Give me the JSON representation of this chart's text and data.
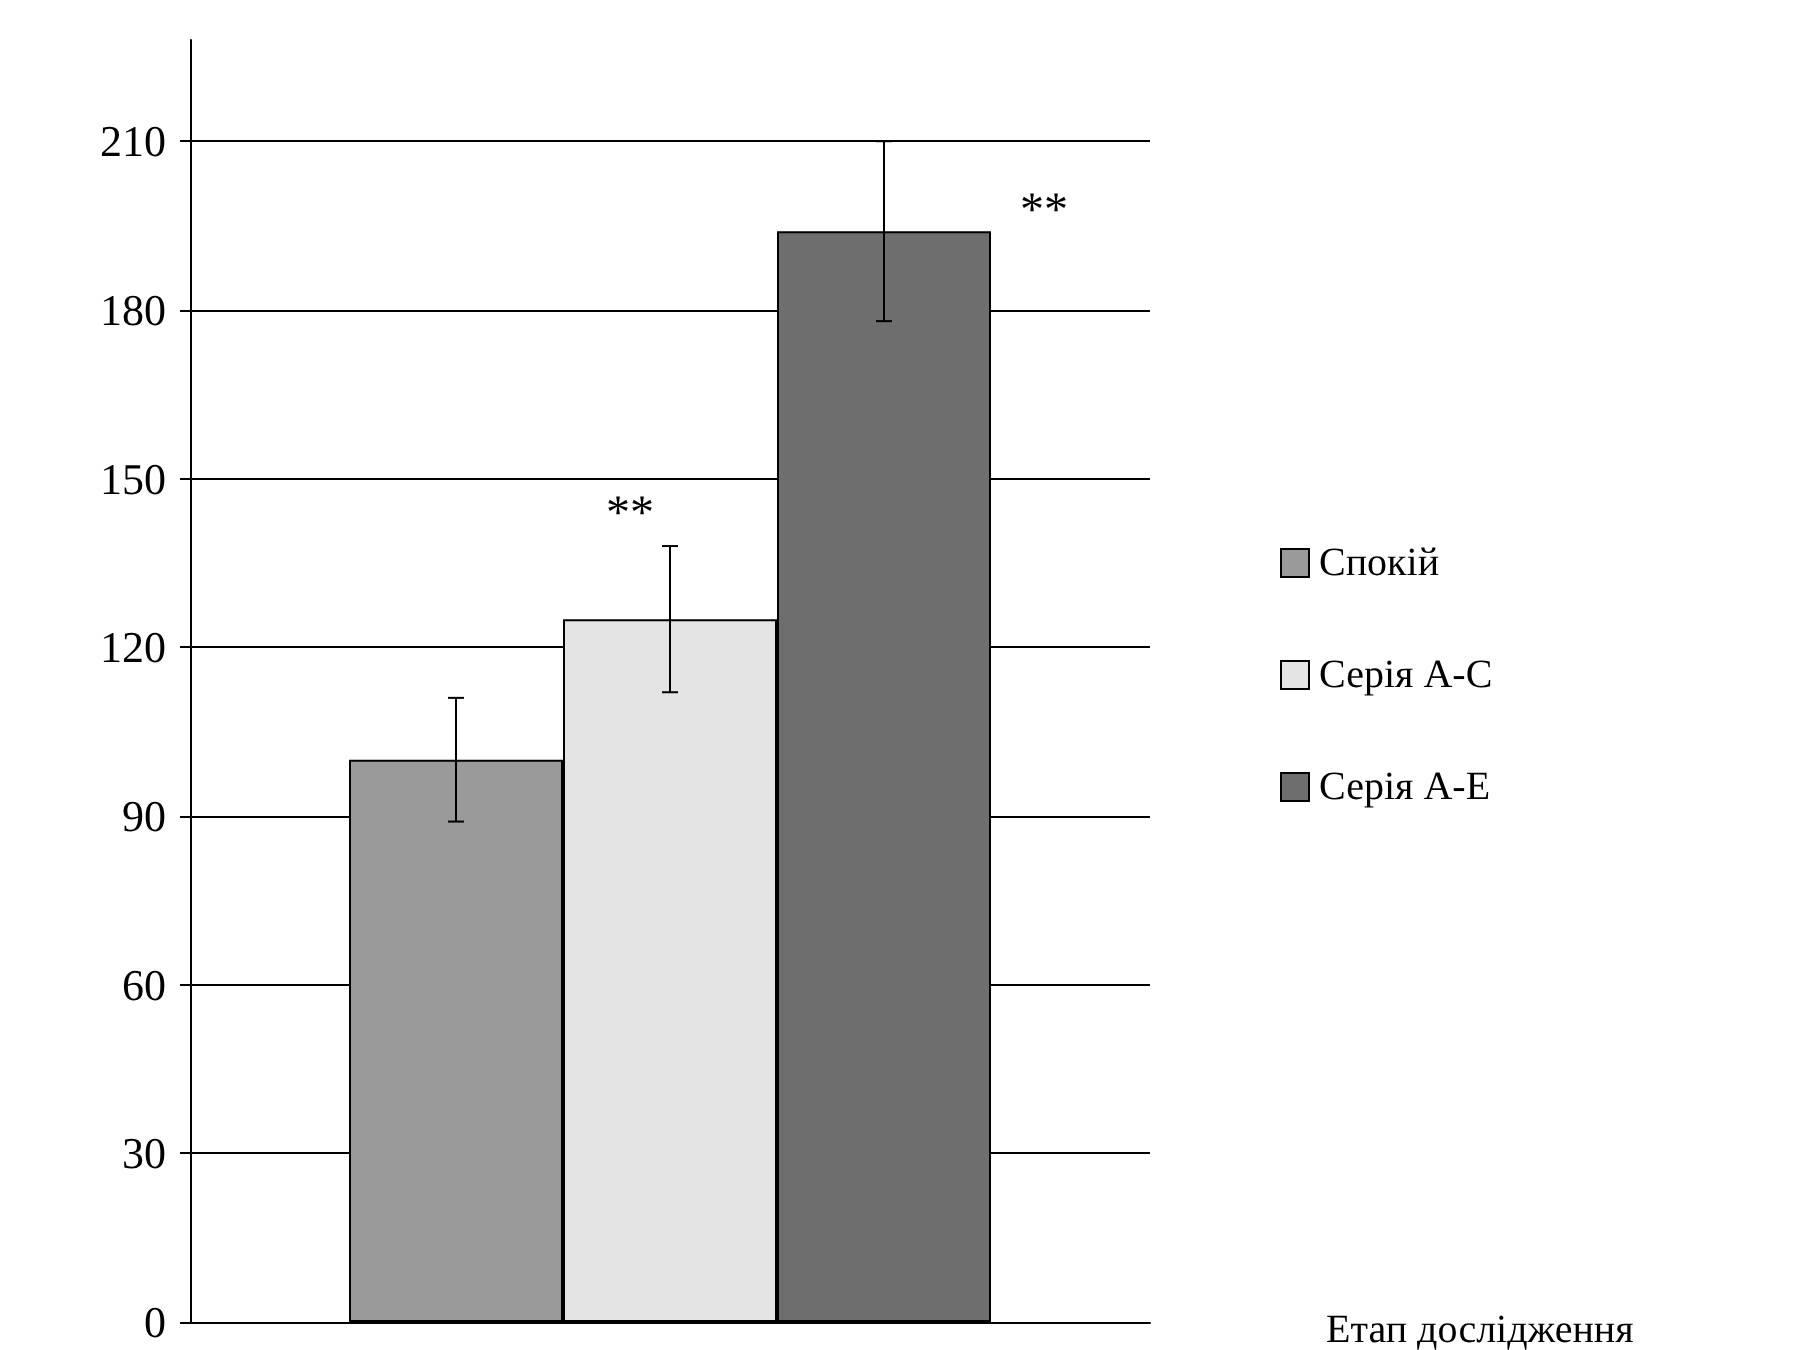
{
  "chart_data": {
    "type": "bar",
    "xlabel": "Етап дослідження",
    "categories": [
      null
    ],
    "series": [
      {
        "name": "Спокій",
        "color": "#9a9a9a",
        "values": [
          100
        ],
        "errors": [
          11
        ]
      },
      {
        "name": "Серія А-С",
        "color": "#e4e4e4",
        "values": [
          125
        ],
        "errors": [
          13
        ]
      },
      {
        "name": "Серія А-Е",
        "color": "#6e6e6e",
        "values": [
          194
        ],
        "errors": [
          16
        ]
      }
    ],
    "ylim": [
      0,
      228
    ],
    "yticks": [
      0,
      30,
      60,
      90,
      120,
      150,
      180,
      210
    ],
    "grid": "y",
    "legend": "right",
    "annotations": [
      "**",
      "**"
    ]
  }
}
